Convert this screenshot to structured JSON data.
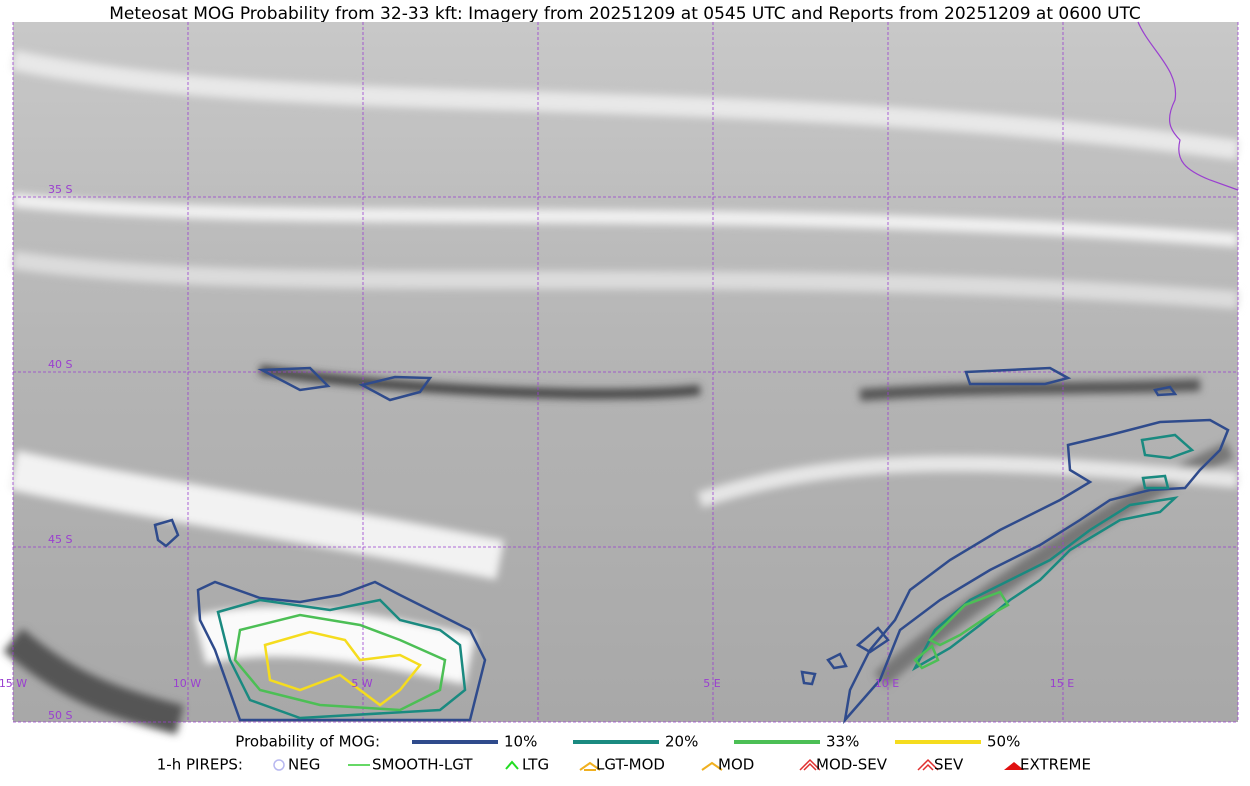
{
  "header": {
    "title": "Meteosat MOG Probability from 32-33 kft: Imagery from 20251209 at 0545 UTC and Reports from 20251209 at 0600 UTC"
  },
  "map": {
    "lat_labels": [
      "35 S",
      "40 S",
      "45 S",
      "50 S"
    ],
    "lon_labels": [
      "15 W",
      "10 W",
      "5 W",
      "5 E",
      "10 E",
      "15 E"
    ]
  },
  "legend": {
    "probability_title": "Probability of MOG:",
    "probability_levels": [
      "10%",
      "20%",
      "33%",
      "50%"
    ],
    "pireps_title": "1-h PIREPS:",
    "pireps": [
      "NEG",
      "SMOOTH-LGT",
      "LTG",
      "LGT-MOD",
      "MOD",
      "MOD-SEV",
      "SEV",
      "EXTREME"
    ]
  }
}
